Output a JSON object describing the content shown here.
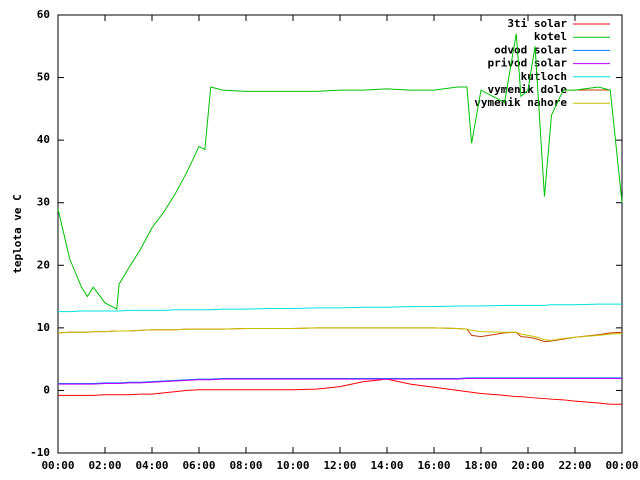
{
  "chart_data": {
    "type": "line",
    "ylabel": "teplota ve C",
    "x": [
      0,
      0.5,
      1,
      1.25,
      1.5,
      2,
      2.5,
      2.6,
      3,
      3.5,
      4,
      4.5,
      5,
      5.5,
      6,
      6.25,
      6.5,
      7,
      8,
      9,
      10,
      11,
      12,
      13,
      14,
      15,
      16,
      17,
      17.4,
      17.6,
      18,
      19,
      19.5,
      19.7,
      20,
      20.3,
      20.7,
      21,
      21.5,
      22,
      23,
      23.5,
      24
    ],
    "xlim": [
      0,
      24
    ],
    "xticks": [
      {
        "value": 0,
        "label": "00:00"
      },
      {
        "value": 2,
        "label": "02:00"
      },
      {
        "value": 4,
        "label": "04:00"
      },
      {
        "value": 6,
        "label": "06:00"
      },
      {
        "value": 8,
        "label": "08:00"
      },
      {
        "value": 10,
        "label": "10:00"
      },
      {
        "value": 12,
        "label": "12:00"
      },
      {
        "value": 14,
        "label": "14:00"
      },
      {
        "value": 16,
        "label": "16:00"
      },
      {
        "value": 18,
        "label": "18:00"
      },
      {
        "value": 20,
        "label": "20:00"
      },
      {
        "value": 22,
        "label": "22:00"
      },
      {
        "value": 24,
        "label": "00:00"
      }
    ],
    "ylim": [
      -10,
      60
    ],
    "yticks": [
      -10,
      0,
      10,
      20,
      30,
      40,
      50,
      60
    ],
    "grid": false,
    "legend": "top-right",
    "series": [
      {
        "name": "3ti solar",
        "color": "#ff0000",
        "values": [
          -0.8,
          -0.8,
          -0.8,
          -0.8,
          -0.8,
          -0.7,
          -0.7,
          -0.7,
          -0.7,
          -0.6,
          -0.6,
          -0.4,
          -0.2,
          0,
          0.1,
          0.1,
          0.1,
          0.1,
          0.1,
          0.1,
          0.1,
          0.2,
          0.6,
          1.4,
          1.8,
          1.0,
          0.5,
          0,
          -0.2,
          -0.3,
          -0.5,
          -0.8,
          -1.0,
          -1.0,
          -1.1,
          -1.2,
          -1.3,
          -1.4,
          -1.5,
          -1.7,
          -2.0,
          -2.2,
          -2.2
        ]
      },
      {
        "name": "kotel",
        "color": "#00c000",
        "values": [
          29,
          21,
          16.5,
          15,
          16.5,
          14,
          13,
          17,
          19.5,
          22.5,
          26,
          28.5,
          31.5,
          35,
          39,
          38.5,
          48.5,
          48,
          47.8,
          47.8,
          47.8,
          47.8,
          48,
          48,
          48.2,
          48,
          48,
          48.5,
          48.5,
          39.5,
          48,
          46,
          57,
          47,
          48,
          55,
          31,
          44,
          48,
          48,
          48.5,
          48,
          30
        ]
      },
      {
        "name": "odvod solar",
        "color": "#0080ff",
        "values": [
          1.1,
          1.1,
          1.1,
          1.1,
          1.1,
          1.2,
          1.2,
          1.2,
          1.3,
          1.3,
          1.4,
          1.5,
          1.6,
          1.7,
          1.8,
          1.8,
          1.8,
          1.9,
          1.9,
          1.9,
          1.9,
          1.9,
          1.9,
          1.9,
          1.9,
          1.9,
          1.9,
          1.9,
          2.0,
          2.0,
          2.0,
          2.0,
          2.0,
          2.0,
          2.0,
          2.0,
          2.0,
          2.0,
          2.0,
          2.0,
          2.0,
          2.0,
          2.0
        ]
      },
      {
        "name": "privod solar",
        "color": "#c000ff",
        "values": [
          1.0,
          1.0,
          1.0,
          1.0,
          1.0,
          1.1,
          1.1,
          1.1,
          1.2,
          1.2,
          1.3,
          1.4,
          1.5,
          1.6,
          1.7,
          1.7,
          1.7,
          1.8,
          1.8,
          1.8,
          1.8,
          1.8,
          1.8,
          1.8,
          1.8,
          1.8,
          1.8,
          1.8,
          1.9,
          1.9,
          1.9,
          1.9,
          1.9,
          1.9,
          1.9,
          1.9,
          1.9,
          1.9,
          1.9,
          1.9,
          1.9,
          1.9,
          1.9
        ]
      },
      {
        "name": "kutloch",
        "color": "#00e0e0",
        "values": [
          12.6,
          12.6,
          12.7,
          12.7,
          12.7,
          12.7,
          12.7,
          12.7,
          12.8,
          12.8,
          12.8,
          12.8,
          12.9,
          12.9,
          12.9,
          12.9,
          12.9,
          13.0,
          13.0,
          13.1,
          13.1,
          13.2,
          13.2,
          13.3,
          13.3,
          13.4,
          13.4,
          13.5,
          13.5,
          13.5,
          13.5,
          13.6,
          13.6,
          13.6,
          13.6,
          13.6,
          13.6,
          13.7,
          13.7,
          13.7,
          13.8,
          13.8,
          13.8
        ]
      },
      {
        "name": "vymenik dole",
        "color": "#c04000",
        "values": [
          9.2,
          9.3,
          9.3,
          9.3,
          9.4,
          9.4,
          9.5,
          9.5,
          9.5,
          9.6,
          9.7,
          9.7,
          9.7,
          9.8,
          9.8,
          9.8,
          9.8,
          9.8,
          9.9,
          9.9,
          9.9,
          10,
          10,
          10,
          10,
          10,
          10,
          9.9,
          9.8,
          8.8,
          8.6,
          9.2,
          9.3,
          8.6,
          8.5,
          8.3,
          7.8,
          7.9,
          8.2,
          8.5,
          8.9,
          9.2,
          9.3
        ]
      },
      {
        "name": "vymenik nahore",
        "color": "#c8c000",
        "values": [
          9.2,
          9.3,
          9.3,
          9.3,
          9.4,
          9.4,
          9.5,
          9.5,
          9.5,
          9.6,
          9.7,
          9.7,
          9.7,
          9.8,
          9.8,
          9.8,
          9.8,
          9.8,
          9.9,
          9.9,
          9.9,
          10,
          10,
          10,
          10,
          10,
          10,
          9.9,
          9.8,
          9.6,
          9.4,
          9.3,
          9.3,
          9.0,
          8.8,
          8.6,
          8.1,
          8.0,
          8.3,
          8.5,
          8.8,
          9.0,
          9.1
        ]
      }
    ]
  }
}
